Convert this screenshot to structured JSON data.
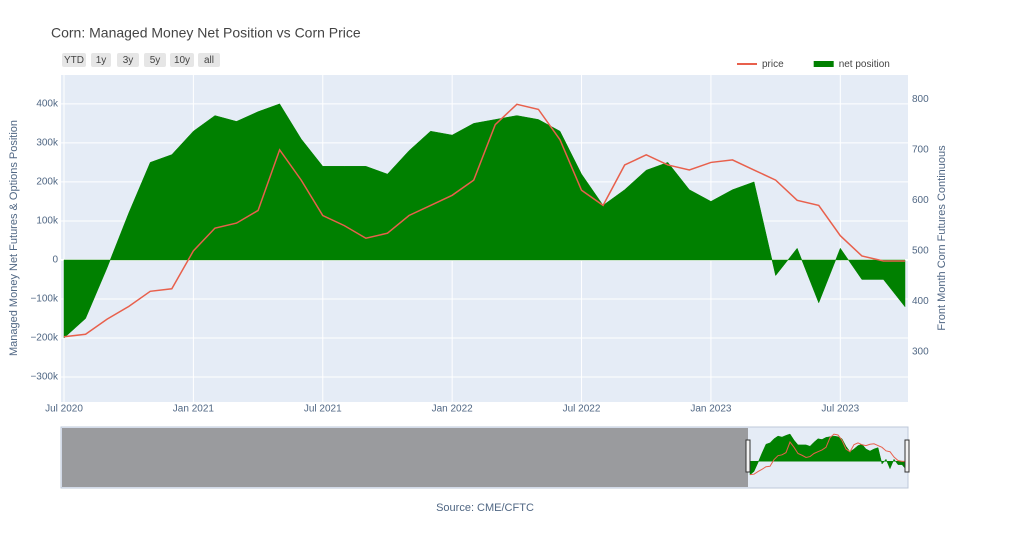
{
  "chart_data": {
    "type": "area_line",
    "title": "Corn: Managed Money Net Position vs Corn Price",
    "y_label": "Managed Money Net Futures & Options Position",
    "y2_label": "Front Month Corn Futures Continuous",
    "source": "Source: CME/CFTC",
    "range_buttons": [
      "YTD",
      "1y",
      "3y",
      "5y",
      "10y",
      "all"
    ],
    "x": [
      "2020-07",
      "2020-08",
      "2020-09",
      "2020-10",
      "2020-11",
      "2020-12",
      "2021-01",
      "2021-02",
      "2021-03",
      "2021-04",
      "2021-05",
      "2021-06",
      "2021-07",
      "2021-08",
      "2021-09",
      "2021-10",
      "2021-11",
      "2021-12",
      "2022-01",
      "2022-02",
      "2022-03",
      "2022-04",
      "2022-05",
      "2022-06",
      "2022-07",
      "2022-08",
      "2022-09",
      "2022-10",
      "2022-11",
      "2022-12",
      "2023-01",
      "2023-02",
      "2023-03",
      "2023-04",
      "2023-05",
      "2023-06",
      "2023-07",
      "2023-08",
      "2023-09",
      "2023-10"
    ],
    "xlim": [
      "2020-07",
      "2023-10"
    ],
    "xticks": [
      {
        "value": "2020-07",
        "label": "Jul 2020"
      },
      {
        "value": "2021-01",
        "label": "Jan 2021"
      },
      {
        "value": "2021-07",
        "label": "Jul 2021"
      },
      {
        "value": "2022-01",
        "label": "Jan 2022"
      },
      {
        "value": "2022-07",
        "label": "Jul 2022"
      },
      {
        "value": "2023-01",
        "label": "Jan 2023"
      },
      {
        "value": "2023-07",
        "label": "Jul 2023"
      }
    ],
    "ylim": [
      -364000,
      474000
    ],
    "yticks": [
      {
        "value": -300000,
        "label": "−300k"
      },
      {
        "value": -200000,
        "label": "−200k"
      },
      {
        "value": -100000,
        "label": "−100k"
      },
      0,
      {
        "value": 100000,
        "label": "100k"
      },
      {
        "value": 200000,
        "label": "200k"
      },
      {
        "value": 300000,
        "label": "300k"
      },
      {
        "value": 400000,
        "label": "400k"
      }
    ],
    "y2lim": [
      201,
      848
    ],
    "y2ticks": [
      300,
      400,
      500,
      600,
      700,
      800
    ],
    "grid": true,
    "legend": "top-right",
    "series": [
      {
        "name": "price",
        "type": "line",
        "axis": "y2",
        "color": "#e8604c",
        "values": [
          330,
          335,
          365,
          390,
          420,
          425,
          500,
          545,
          555,
          580,
          700,
          640,
          570,
          550,
          525,
          535,
          570,
          590,
          610,
          640,
          750,
          790,
          780,
          720,
          620,
          590,
          670,
          690,
          670,
          660,
          675,
          680,
          660,
          640,
          600,
          590,
          530,
          490,
          480,
          480
        ]
      },
      {
        "name": "net position",
        "type": "area",
        "color": "#008000",
        "values": [
          -200000,
          -150000,
          -20000,
          120000,
          250000,
          270000,
          330000,
          370000,
          355000,
          380000,
          400000,
          310000,
          240000,
          240000,
          240000,
          220000,
          280000,
          330000,
          320000,
          350000,
          360000,
          370000,
          360000,
          330000,
          220000,
          140000,
          180000,
          230000,
          250000,
          180000,
          150000,
          180000,
          200000,
          -40000,
          30000,
          -110000,
          30000,
          -50000,
          -50000,
          -120000
        ]
      }
    ]
  }
}
